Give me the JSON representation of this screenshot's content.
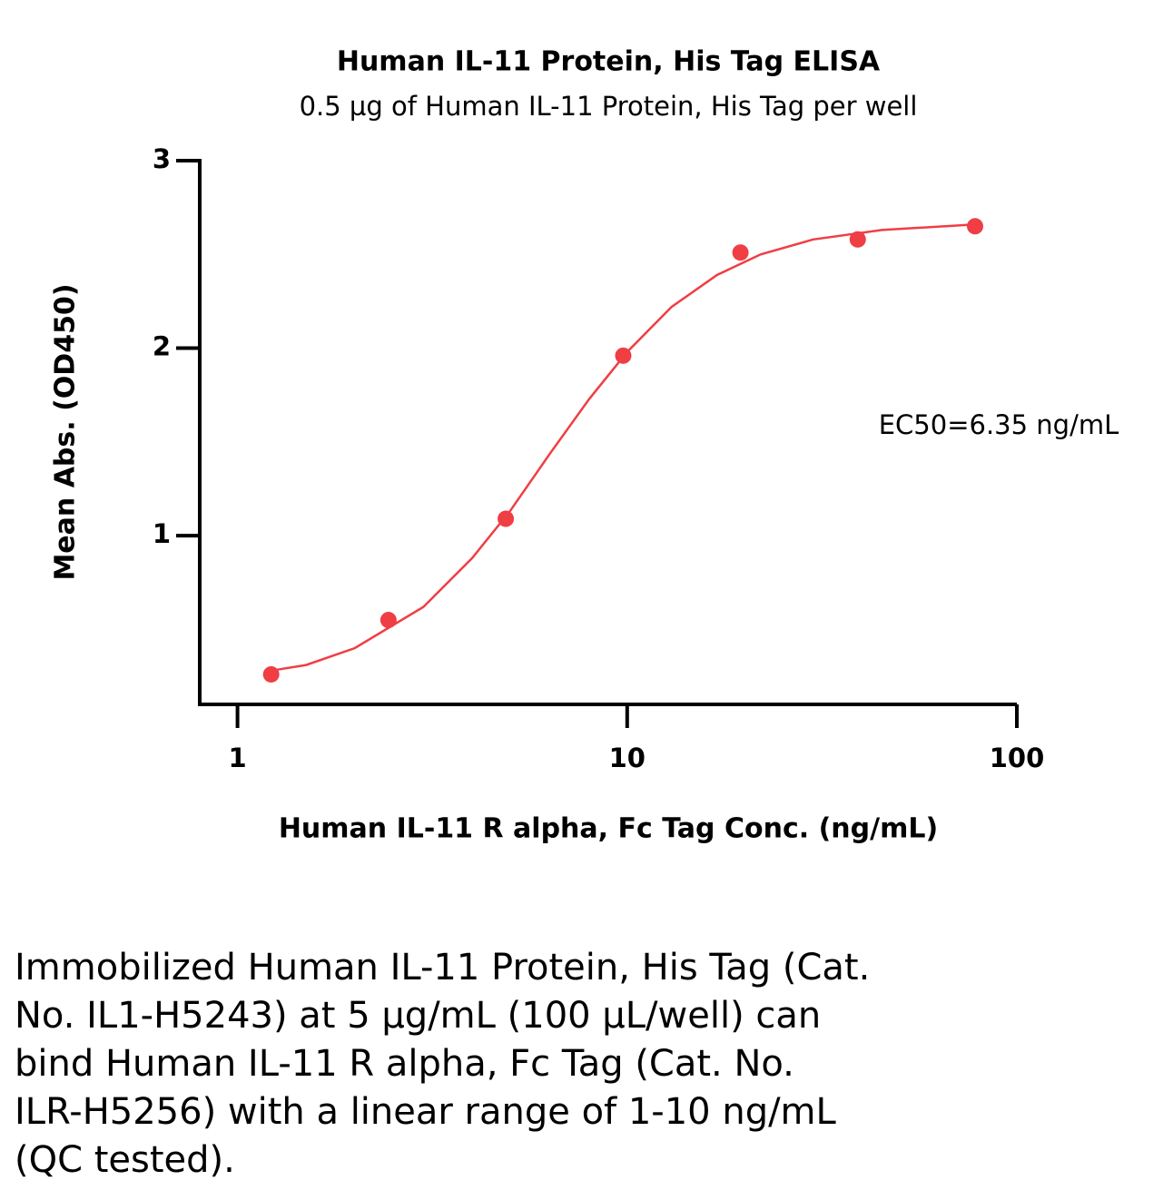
{
  "chart_data": {
    "type": "scatter",
    "title": "Human IL-11 Protein, His Tag ELISA",
    "subtitle": "0.5 µg of Human IL-11 Protein, His Tag per well",
    "x_label": "Human IL-11 R alpha, Fc Tag Conc. (ng/mL)",
    "y_label": "Mean Abs. (OD450)",
    "annotation": "EC50=6.35 ng/mL",
    "xscale": "log",
    "xlim": [
      0.8,
      100
    ],
    "ylim": [
      0.1,
      3
    ],
    "xticks": [
      1,
      10,
      100
    ],
    "yticks": [
      1,
      2,
      3
    ],
    "series": [
      {
        "color": "#ef3e44",
        "x": [
          1.22,
          2.44,
          4.88,
          9.77,
          19.53,
          39.06,
          78.13
        ],
        "values": [
          0.26,
          0.55,
          1.09,
          1.96,
          2.51,
          2.58,
          2.65
        ]
      }
    ],
    "curve": {
      "color": "#ef3e44",
      "x": [
        1.22,
        1.5,
        2,
        3,
        4,
        5,
        6.35,
        8,
        10,
        13,
        17,
        22,
        30,
        45,
        78.13
      ],
      "values": [
        0.28,
        0.31,
        0.4,
        0.62,
        0.88,
        1.13,
        1.44,
        1.73,
        1.98,
        2.22,
        2.39,
        2.5,
        2.58,
        2.63,
        2.66
      ]
    }
  },
  "caption": [
    "Immobilized Human IL-11 Protein, His Tag (Cat.",
    "No. IL1-H5243) at 5 µg/mL (100 µL/well) can",
    "bind Human IL-11 R alpha, Fc Tag (Cat. No.",
    "ILR-H5256) with a linear range of 1-10 ng/mL",
    "(QC tested)."
  ]
}
